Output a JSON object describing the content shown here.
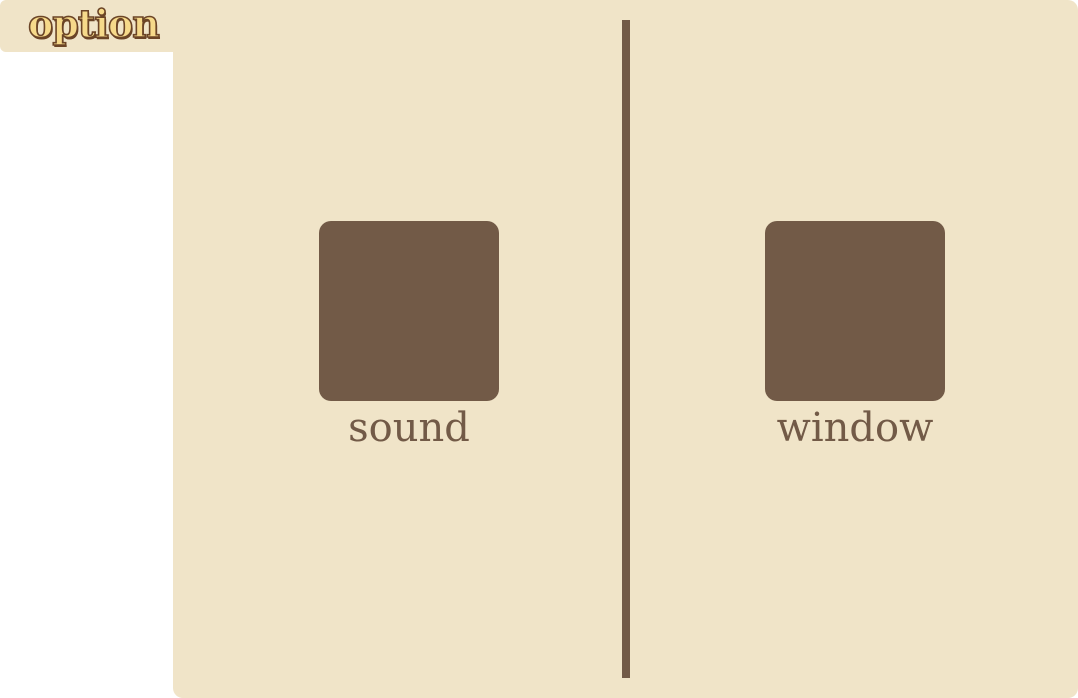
{
  "header": {
    "title": "option"
  },
  "options": [
    {
      "label": "sound",
      "icon": "sound-icon"
    },
    {
      "label": "window",
      "icon": "window-icon"
    }
  ],
  "colors": {
    "panel_bg": "#f0e4c8",
    "accent_brown": "#725a47",
    "title_fill": "#f6d98a",
    "title_outline": "#6b4426"
  }
}
